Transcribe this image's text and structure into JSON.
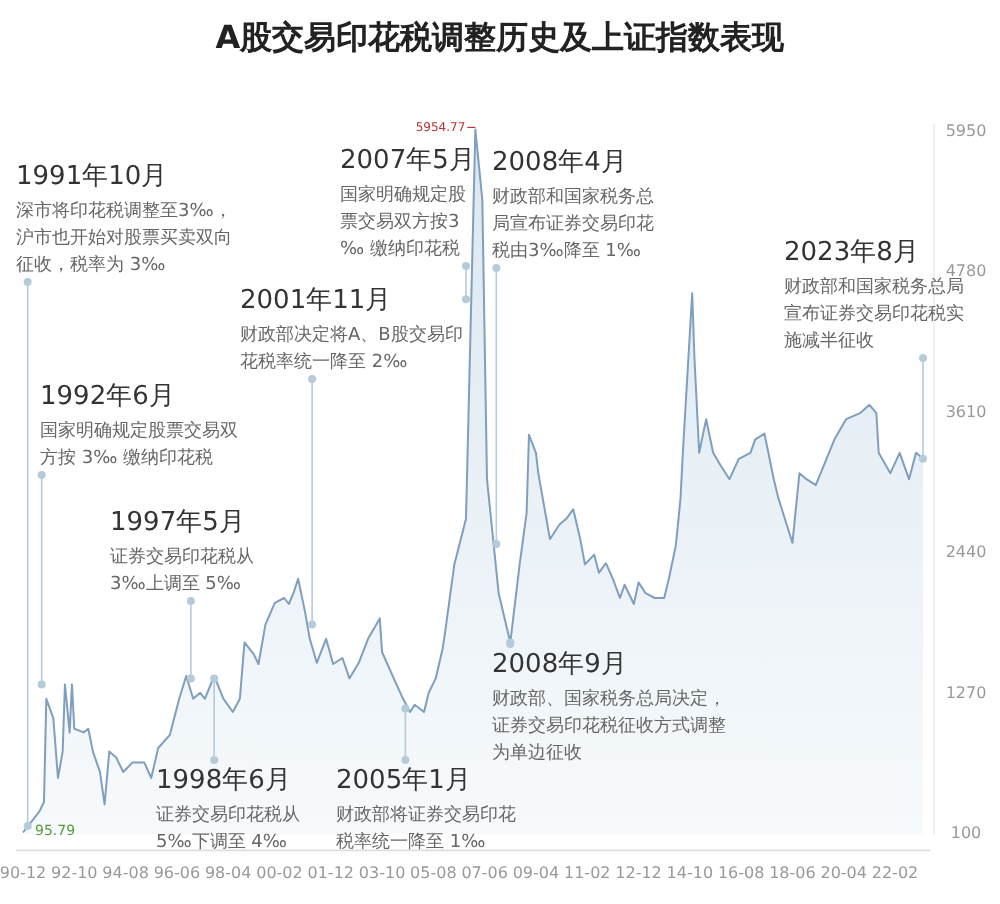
{
  "chart_data": {
    "type": "area",
    "title": "A股交易印花税调整历史及上证指数表现",
    "xlim": [
      "1990-09",
      "2023-05"
    ],
    "ylim": [
      80,
      6000
    ],
    "yticks": [
      100,
      1270,
      2440,
      3610,
      4780,
      5950
    ],
    "xticks": [
      {
        "value": "1990-12",
        "label": "90-12"
      },
      {
        "value": "1992-10",
        "label": "92-10"
      },
      {
        "value": "1994-08",
        "label": "94-08"
      },
      {
        "value": "1996-06",
        "label": "96-06"
      },
      {
        "value": "1998-04",
        "label": "98-04"
      },
      {
        "value": "2000-02",
        "label": "00-02"
      },
      {
        "value": "2001-12",
        "label": "01-12"
      },
      {
        "value": "2003-10",
        "label": "03-10"
      },
      {
        "value": "2005-08",
        "label": "05-08"
      },
      {
        "value": "2007-06",
        "label": "07-06"
      },
      {
        "value": "2009-04",
        "label": "09-04"
      },
      {
        "value": "2011-02",
        "label": "11-02"
      },
      {
        "value": "2012-12",
        "label": "12-12"
      },
      {
        "value": "2014-10",
        "label": "14-10"
      },
      {
        "value": "2016-08",
        "label": "16-08"
      },
      {
        "value": "2018-06",
        "label": "18-06"
      },
      {
        "value": "2020-04",
        "label": "20-04"
      },
      {
        "value": "2022-02",
        "label": "22-02"
      }
    ],
    "series": [
      {
        "color": "#7f9fbf",
        "x": [
          "1990-12",
          "1991-07",
          "1991-09",
          "1991-10",
          "1992-01",
          "1992-03",
          "1992-05",
          "1992-06",
          "1992-08",
          "1992-09",
          "1992-10",
          "1993-02",
          "1993-04",
          "1993-06",
          "1993-09",
          "1993-11",
          "1994-01",
          "1994-04",
          "1994-07",
          "1994-11",
          "1995-04",
          "1995-07",
          "1995-10",
          "1996-03",
          "1996-07",
          "1996-10",
          "1997-01",
          "1997-04",
          "1997-06",
          "1997-10",
          "1998-02",
          "1998-06",
          "1998-09",
          "1998-11",
          "1999-03",
          "1999-05",
          "1999-08",
          "1999-12",
          "2000-04",
          "2000-06",
          "2000-08",
          "2000-10",
          "2001-01",
          "2001-03",
          "2001-06",
          "2001-10",
          "2002-01",
          "2002-05",
          "2002-08",
          "2002-12",
          "2003-04",
          "2003-09",
          "2003-10",
          "2004-03",
          "2004-07",
          "2004-10",
          "2004-12",
          "2005-04",
          "2005-06",
          "2005-09",
          "2005-12",
          "2006-01",
          "2006-05",
          "2006-10",
          "2007-02",
          "2007-05",
          "2007-07",
          "2007-12",
          "2008-05",
          "2008-09",
          "2008-12",
          "2009-01",
          "2009-04",
          "2009-05",
          "2009-10",
          "2010-02",
          "2010-05",
          "2010-08",
          "2010-11",
          "2011-01",
          "2011-05",
          "2011-07",
          "2011-10",
          "2012-01",
          "2012-04",
          "2012-06",
          "2012-10",
          "2012-12",
          "2013-03",
          "2013-07",
          "2013-11",
          "2014-01",
          "2014-04",
          "2014-06",
          "2014-07",
          "2014-11",
          "2014-12",
          "2015-02",
          "2015-05",
          "2015-08",
          "2015-11",
          "2016-03",
          "2016-07",
          "2016-12",
          "2017-02",
          "2017-06",
          "2017-10",
          "2017-12",
          "2018-06",
          "2018-09",
          "2018-12",
          "2019-04",
          "2019-08",
          "2019-12",
          "2020-05",
          "2020-11",
          "2021-03",
          "2021-06",
          "2021-07",
          "2021-12",
          "2022-04",
          "2022-08",
          "2022-11",
          "2023-02"
        ],
        "values": [
          95.79,
          270,
          350,
          1210,
          1050,
          550,
          770,
          1330,
          930,
          1330,
          960,
          930,
          960,
          770,
          600,
          330,
          770,
          720,
          600,
          680,
          680,
          550,
          800,
          910,
          1210,
          1400,
          1210,
          1260,
          1210,
          1400,
          1210,
          1100,
          1210,
          1680,
          1580,
          1500,
          1830,
          2010,
          2050,
          2000,
          2090,
          2210,
          1930,
          1710,
          1510,
          1710,
          1500,
          1550,
          1380,
          1510,
          1710,
          1880,
          1600,
          1380,
          1210,
          1100,
          1160,
          1100,
          1260,
          1380,
          1630,
          1760,
          2330,
          2710,
          5954.77,
          5370,
          3040,
          2090,
          1680,
          2330,
          2760,
          3410,
          3260,
          3090,
          2540,
          2660,
          2710,
          2790,
          2540,
          2330,
          2410,
          2260,
          2340,
          2210,
          2050,
          2160,
          2000,
          2180,
          2090,
          2050,
          2050,
          2210,
          2490,
          2880,
          3260,
          4590,
          4040,
          3260,
          3540,
          3260,
          3160,
          3040,
          3210,
          3260,
          3370,
          3420,
          3040,
          2880,
          2510,
          3090,
          3040,
          2990,
          3180,
          3370,
          3540,
          3590,
          3660,
          3590,
          3260,
          3090,
          3260,
          3040,
          3260,
          3210
        ]
      }
    ],
    "annotations": [
      "1991年10月",
      {
        "text": "深市将印花税调整至3‰，沪市也开始对股票买卖双向征收，税率为 3‰",
        "x": "1991-02",
        "y": 150
      },
      "1992年6月",
      {
        "text": "国家明确规定股票交易双方按 3‰ 缴纳印花税",
        "x": "1991-08",
        "y": 1330
      },
      "1997年5月",
      {
        "text": "证券交易印花税从3‰上调至 5‰",
        "x": "1996-12",
        "y": 1380
      },
      {
        "text": "1998年6月",
        "x": "1997-10",
        "y": 1380
      },
      "证券交易印花税从5‰下调至 4‰",
      "2001年11月",
      {
        "text": "财政部决定将A、B股交易印花税率统一降至 2‰",
        "x": "2001-04",
        "y": 1830
      },
      {
        "text": "2005年1月",
        "x": "2004-08",
        "y": 1130
      },
      "财政部将证券交易印花税率统一降至 1‰",
      "2007年5月",
      {
        "text": "国家明确规定股票交易双方按3‰ 缴纳印花税",
        "x": "2006-10",
        "y": 4540
      },
      "2008年4月",
      {
        "text": "财政部和国家税务总局宣布证券交易印花税由3‰降至 1‰",
        "x": "2007-11",
        "y": 2500
      },
      {
        "text": "2008年9月",
        "x": "2008-05",
        "y": 1680
      },
      "财政部、国家税务总局决定，证券交易印花税征收方式调整为单边征收",
      "2023年8月",
      {
        "text": "财政部和国家税务总局宣布证券交易印花税实施减半征收",
        "x": "2023-02",
        "y": 3210
      },
      {
        "text": "5954.77",
        "x": "2007-02",
        "y": 5954.77
      },
      {
        "text": "95.79",
        "x": "1990-12",
        "y": 95.79
      }
    ]
  }
}
